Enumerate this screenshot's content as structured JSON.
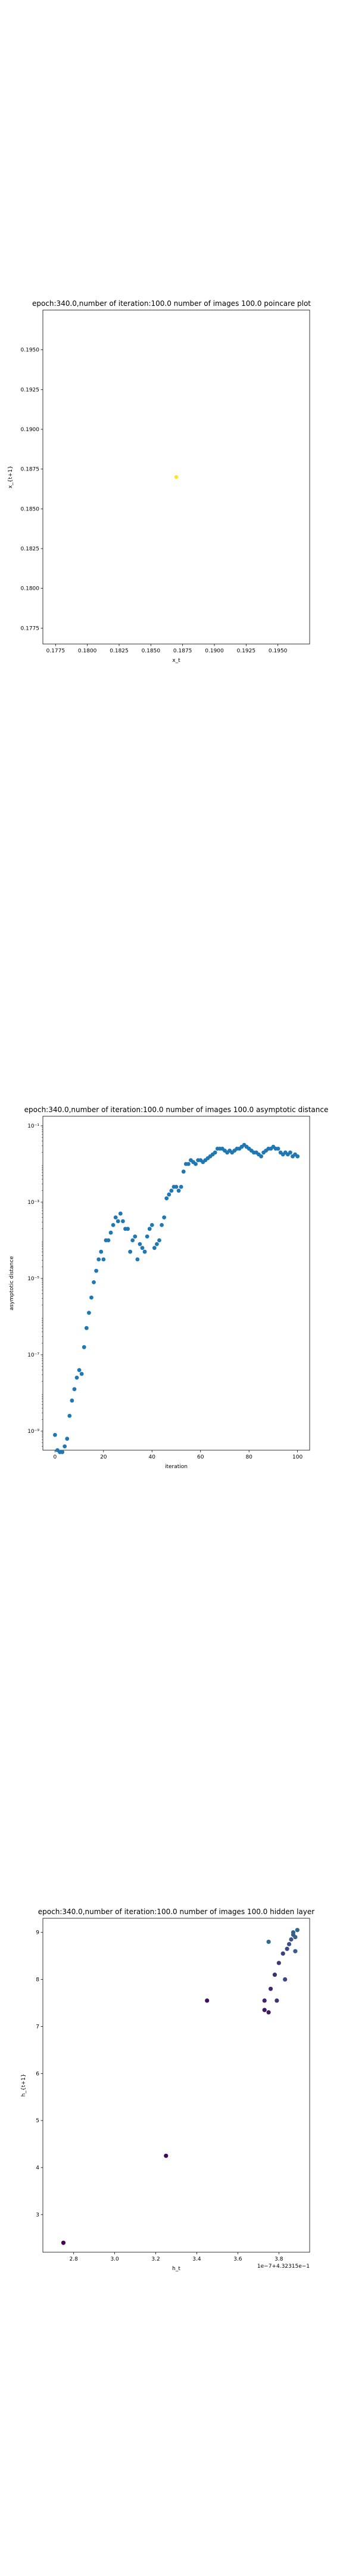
{
  "chart_data": [
    {
      "type": "scatter",
      "title": "epoch:340.0,number of iteration:100.0 number of images 100.0 poincare plot",
      "xlabel": "x_t",
      "ylabel": "x_{t+1}",
      "xlim": [
        0.1765,
        0.1975
      ],
      "ylim": [
        0.1765,
        0.1975
      ],
      "xticks": [
        "0.1775",
        "0.1800",
        "0.1825",
        "0.1850",
        "0.1875",
        "0.1900",
        "0.1925",
        "0.1950"
      ],
      "yticks": [
        "0.1775",
        "0.1800",
        "0.1825",
        "0.1850",
        "0.1875",
        "0.1900",
        "0.1925",
        "0.1950"
      ],
      "xtick_values": [
        0.1775,
        0.18,
        0.1825,
        0.185,
        0.1875,
        0.19,
        0.1925,
        0.195
      ],
      "ytick_values": [
        0.1775,
        0.18,
        0.1825,
        0.185,
        0.1875,
        0.19,
        0.1925,
        0.195
      ],
      "points": [
        [
          0.187,
          0.187
        ]
      ],
      "point_color": "#fde725",
      "grid": false
    },
    {
      "type": "scatter",
      "title": "epoch:340.0,number of iteration:100.0  number of images 100.0 asymptotic distance",
      "xlabel": "iteration",
      "ylabel": "asymptotic distance",
      "yscale": "log",
      "xlim": [
        -5,
        105
      ],
      "ylim_log10": [
        -9.5,
        -0.75
      ],
      "xticks": [
        "0",
        "20",
        "40",
        "60",
        "80",
        "100"
      ],
      "xtick_values": [
        0,
        20,
        40,
        60,
        80,
        100
      ],
      "yticks": [
        "10⁻⁹",
        "10⁻⁷",
        "10⁻⁵",
        "10⁻³",
        "10⁻¹"
      ],
      "ytick_exponents": [
        -9,
        -7,
        -5,
        -3,
        -1
      ],
      "point_color": "#1f77b4",
      "grid": false,
      "x": [
        0,
        1,
        2,
        3,
        4,
        5,
        6,
        7,
        8,
        9,
        10,
        11,
        12,
        13,
        14,
        15,
        16,
        17,
        18,
        19,
        20,
        21,
        22,
        23,
        24,
        25,
        26,
        27,
        28,
        29,
        30,
        31,
        32,
        33,
        34,
        35,
        36,
        37,
        38,
        39,
        40,
        41,
        42,
        43,
        44,
        45,
        46,
        47,
        48,
        49,
        50,
        51,
        52,
        53,
        54,
        55,
        56,
        57,
        58,
        59,
        60,
        61,
        62,
        63,
        64,
        65,
        66,
        67,
        68,
        69,
        70,
        71,
        72,
        73,
        74,
        75,
        76,
        77,
        78,
        79,
        80,
        81,
        82,
        83,
        84,
        85,
        86,
        87,
        88,
        89,
        90,
        91,
        92,
        93,
        94,
        95,
        96,
        97,
        98,
        99,
        100
      ],
      "log10_y": [
        -9.1,
        -9.5,
        -9.55,
        -9.55,
        -9.4,
        -9.2,
        -8.6,
        -8.2,
        -7.9,
        -7.6,
        -7.4,
        -7.5,
        -6.8,
        -6.3,
        -5.9,
        -5.5,
        -5.1,
        -4.8,
        -4.5,
        -4.3,
        -4.5,
        -4.0,
        -4.0,
        -3.8,
        -3.6,
        -3.4,
        -3.5,
        -3.3,
        -3.5,
        -3.7,
        -3.7,
        -4.3,
        -4.0,
        -3.9,
        -4.5,
        -4.1,
        -4.2,
        -4.3,
        -3.9,
        -3.7,
        -3.6,
        -4.2,
        -4.1,
        -4.0,
        -3.6,
        -3.4,
        -2.9,
        -2.8,
        -2.7,
        -2.6,
        -2.6,
        -2.7,
        -2.6,
        -2.2,
        -2.0,
        -2.0,
        -1.9,
        -1.95,
        -2.0,
        -1.9,
        -1.9,
        -1.95,
        -1.9,
        -1.85,
        -1.8,
        -1.75,
        -1.7,
        -1.6,
        -1.6,
        -1.6,
        -1.65,
        -1.7,
        -1.65,
        -1.7,
        -1.65,
        -1.6,
        -1.6,
        -1.55,
        -1.5,
        -1.55,
        -1.6,
        -1.65,
        -1.7,
        -1.7,
        -1.75,
        -1.8,
        -1.7,
        -1.65,
        -1.6,
        -1.6,
        -1.55,
        -1.6,
        -1.6,
        -1.7,
        -1.75,
        -1.7,
        -1.75,
        -1.7,
        -1.8,
        -1.75,
        -1.8
      ]
    },
    {
      "type": "scatter",
      "title": "epoch:340.0,number of iteration:100.0  number of images 100.0 hidden layer",
      "xlabel": "h_t",
      "ylabel": "h_{t+1}",
      "offset_label": "1e−7+4.32315e−1",
      "xlim": [
        2.65,
        3.95
      ],
      "ylim": [
        2.2,
        9.3
      ],
      "xticks": [
        "2.8",
        "3.0",
        "3.2",
        "3.4",
        "3.6",
        "3.8"
      ],
      "xtick_values": [
        2.8,
        3.0,
        3.2,
        3.4,
        3.6,
        3.8
      ],
      "yticks": [
        "3",
        "4",
        "5",
        "6",
        "7",
        "8",
        "9"
      ],
      "ytick_values": [
        3,
        4,
        5,
        6,
        7,
        8,
        9
      ],
      "grid": false,
      "points": [
        [
          2.75,
          2.4,
          0.0
        ],
        [
          3.25,
          4.25,
          0.06
        ],
        [
          3.45,
          7.55,
          0.12
        ],
        [
          3.73,
          7.35,
          0.18
        ],
        [
          3.75,
          7.3,
          0.24
        ],
        [
          3.73,
          7.55,
          0.3
        ],
        [
          3.76,
          7.8,
          0.35
        ],
        [
          3.78,
          8.1,
          0.4
        ],
        [
          3.79,
          7.55,
          0.45
        ],
        [
          3.8,
          8.35,
          0.5
        ],
        [
          3.82,
          8.55,
          0.55
        ],
        [
          3.83,
          8.0,
          0.6
        ],
        [
          3.84,
          8.65,
          0.65
        ],
        [
          3.85,
          8.75,
          0.7
        ],
        [
          3.86,
          8.85,
          0.75
        ],
        [
          3.87,
          8.95,
          0.8
        ],
        [
          3.88,
          8.6,
          0.84
        ],
        [
          3.87,
          9.0,
          0.88
        ],
        [
          3.88,
          8.9,
          0.92
        ],
        [
          3.89,
          9.05,
          0.96
        ],
        [
          3.75,
          8.8,
          1.0
        ]
      ]
    }
  ]
}
